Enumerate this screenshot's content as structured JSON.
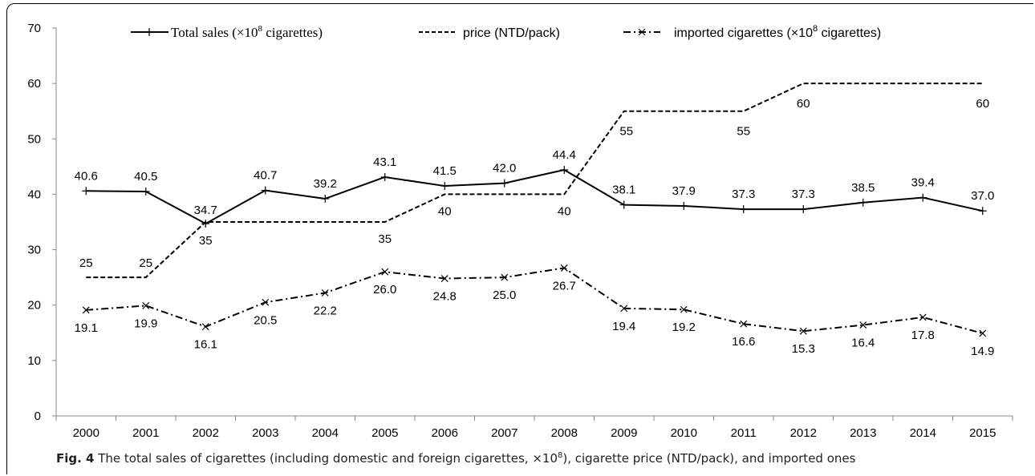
{
  "chart_data": {
    "type": "line",
    "categories": [
      "2000",
      "2001",
      "2002",
      "2003",
      "2004",
      "2005",
      "2006",
      "2007",
      "2008",
      "2009",
      "2010",
      "2011",
      "2012",
      "2013",
      "2014",
      "2015"
    ],
    "ylim": [
      0,
      70
    ],
    "yticks": [
      0,
      10,
      20,
      30,
      40,
      50,
      60,
      70
    ],
    "grid": false,
    "legend_position": "top",
    "series": [
      {
        "name": "Total sales (×10⁸ cigarettes)",
        "style": "solid-plus",
        "values": [
          40.6,
          40.5,
          34.7,
          40.7,
          39.2,
          43.1,
          41.5,
          42.0,
          44.4,
          38.1,
          37.9,
          37.3,
          37.3,
          38.5,
          39.4,
          37.0
        ],
        "labels": [
          "40.6",
          "40.5",
          "34.7",
          "40.7",
          "39.2",
          "43.1",
          "41.5",
          "42.0",
          "44.4",
          "38.1",
          "37.9",
          "37.3",
          "37.3",
          "38.5",
          "39.4",
          "37.0"
        ]
      },
      {
        "name": "price (NTD/pack)",
        "style": "dashed",
        "values": [
          25,
          25,
          35,
          35,
          35,
          35,
          40,
          40,
          40,
          55,
          55,
          55,
          60,
          60,
          60,
          60
        ],
        "labels": [
          "25",
          "25",
          "35",
          "",
          "",
          "35",
          "40",
          "",
          "40",
          "55",
          "",
          "55",
          "60",
          "",
          "",
          "60"
        ]
      },
      {
        "name": "imported cigarettes (×10⁸ cigarettes)",
        "style": "dashdot-x",
        "values": [
          19.1,
          19.9,
          16.1,
          20.5,
          22.2,
          26.0,
          24.8,
          25.0,
          26.7,
          19.4,
          19.2,
          16.6,
          15.3,
          16.4,
          17.8,
          14.9
        ],
        "labels": [
          "19.1",
          "19.9",
          "16.1",
          "20.5",
          "22.2",
          "26.0",
          "24.8",
          "25.0",
          "26.7",
          "19.4",
          "19.2",
          "16.6",
          "15.3",
          "16.4",
          "17.8",
          "14.9"
        ]
      }
    ],
    "legend": {
      "total_prefix": "Total sales (×10",
      "total_sup": "8",
      "total_suffix": " cigarettes)",
      "price": "price (NTD/pack)",
      "imported_prefix": "imported cigarettes (×10",
      "imported_sup": "8",
      "imported_suffix": " cigarettes)"
    }
  },
  "caption": {
    "fig_label": "Fig. 4",
    "text_prefix": " The total sales of cigarettes (including domestic and foreign cigarettes, ×10",
    "text_sup": "8",
    "text_suffix": "), cigarette price (NTD/pack), and imported ones"
  }
}
